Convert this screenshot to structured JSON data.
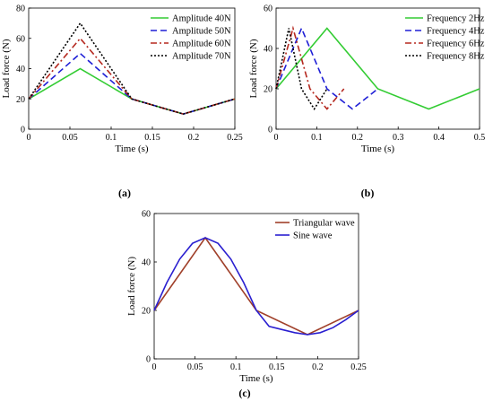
{
  "chart_data": [
    {
      "id": "a",
      "type": "line",
      "caption": "(a)",
      "xlabel": "Time (s)",
      "ylabel": "Load force (N)",
      "xlim": [
        0,
        0.25
      ],
      "ylim": [
        0,
        80
      ],
      "xticks": [
        "0",
        "0.05",
        "0.1",
        "0.15",
        "0.2",
        "0.25"
      ],
      "yticks": [
        "0",
        "20",
        "40",
        "60",
        "80"
      ],
      "legend_position": "top-right",
      "series": [
        {
          "name": "Amplitude 40N",
          "color": "#33cc33",
          "dash": "solid",
          "x": [
            0,
            0.0625,
            0.125,
            0.1875,
            0.25
          ],
          "y": [
            20,
            40,
            20,
            10,
            20
          ]
        },
        {
          "name": "Amplitude 50N",
          "color": "#1f1fd6",
          "dash": "dashed",
          "x": [
            0,
            0.0625,
            0.125,
            0.1875,
            0.25
          ],
          "y": [
            20,
            50,
            20,
            10,
            20
          ]
        },
        {
          "name": "Amplitude 60N",
          "color": "#b5281f",
          "dash": "dashdot",
          "x": [
            0,
            0.0625,
            0.125,
            0.1875,
            0.25
          ],
          "y": [
            20,
            60,
            20,
            10,
            20
          ]
        },
        {
          "name": "Amplitude 70N",
          "color": "#000000",
          "dash": "dotted",
          "x": [
            0,
            0.0625,
            0.125,
            0.1875,
            0.25
          ],
          "y": [
            20,
            70,
            20,
            10,
            20
          ]
        }
      ]
    },
    {
      "id": "b",
      "type": "line",
      "caption": "(b)",
      "xlabel": "Time (s)",
      "ylabel": "Load force (N)",
      "xlim": [
        0,
        0.5
      ],
      "ylim": [
        0,
        60
      ],
      "xticks": [
        "0",
        "0.1",
        "0.2",
        "0.3",
        "0.4",
        "0.5"
      ],
      "yticks": [
        "0",
        "20",
        "40",
        "60"
      ],
      "legend_position": "top-right",
      "series": [
        {
          "name": "Frequency 2Hz",
          "color": "#33cc33",
          "dash": "solid",
          "x": [
            0,
            0.125,
            0.25,
            0.375,
            0.5
          ],
          "y": [
            20,
            50,
            20,
            10,
            20
          ]
        },
        {
          "name": "Frequency 4Hz",
          "color": "#1f1fd6",
          "dash": "dashed",
          "x": [
            0,
            0.0625,
            0.125,
            0.1875,
            0.25
          ],
          "y": [
            20,
            50,
            20,
            10,
            20
          ]
        },
        {
          "name": "Frequency 6Hz",
          "color": "#b5281f",
          "dash": "dashdot",
          "x": [
            0,
            0.0417,
            0.0833,
            0.125,
            0.1667
          ],
          "y": [
            20,
            50,
            20,
            10,
            20
          ]
        },
        {
          "name": "Frequency 8Hz",
          "color": "#000000",
          "dash": "dotted",
          "x": [
            0,
            0.03125,
            0.0625,
            0.09375,
            0.125
          ],
          "y": [
            20,
            50,
            20,
            10,
            20
          ]
        }
      ]
    },
    {
      "id": "c",
      "type": "line",
      "caption": "(c)",
      "xlabel": "Time (s)",
      "ylabel": "Load force (N)",
      "xlim": [
        0,
        0.25
      ],
      "ylim": [
        0,
        60
      ],
      "xticks": [
        "0",
        "0.05",
        "0.1",
        "0.15",
        "0.2",
        "0.25"
      ],
      "yticks": [
        "0",
        "20",
        "40",
        "60"
      ],
      "legend_position": "top-right",
      "series": [
        {
          "name": "Triangular wave",
          "color": "#a0402a",
          "dash": "solid",
          "x": [
            0,
            0.0625,
            0.125,
            0.1875,
            0.25
          ],
          "y": [
            20,
            50,
            20,
            10,
            20
          ]
        },
        {
          "name": "Sine wave",
          "color": "#2a1fd0",
          "dash": "solid",
          "x": [
            0,
            0.0156,
            0.03125,
            0.0469,
            0.0625,
            0.0781,
            0.09375,
            0.1094,
            0.125,
            0.1406,
            0.15625,
            0.1719,
            0.1875,
            0.2031,
            0.21875,
            0.2344,
            0.25
          ],
          "y": [
            20,
            31.5,
            41.2,
            47.7,
            50,
            47.7,
            41.2,
            31.5,
            20,
            13.4,
            12.1,
            10.8,
            10,
            10.8,
            12.9,
            16.2,
            20
          ]
        }
      ]
    }
  ]
}
